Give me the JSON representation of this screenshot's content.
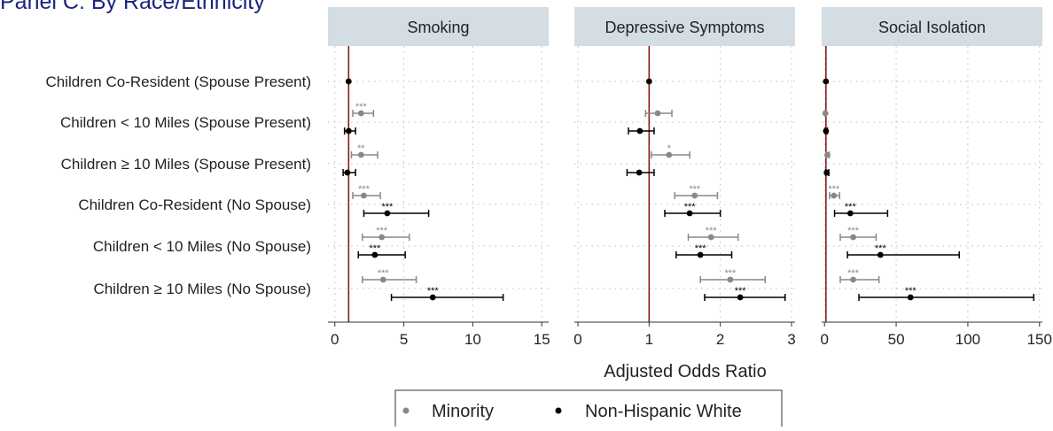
{
  "chart_data": {
    "title": "Panel C: By Race/Ethnicity",
    "type": "scatter",
    "subtype": "forest-plot (odds ratios with 95% CI)",
    "xlabel": "Adjusted Odds Ratio",
    "reference_line_x": 1,
    "reference_line_color": "#8b1a1a",
    "grid": "dotted, both axes",
    "legend_position": "bottom-center",
    "row_labels": [
      "Children Co-Resident (Spouse Present)",
      "Children < 10 Miles (Spouse Present)",
      "Children ≥ 10 Miles (Spouse Present)",
      "Children Co-Resident (No Spouse)",
      "Children < 10 Miles (No Spouse)",
      "Children ≥ 10 Miles (No Spouse)"
    ],
    "legend": [
      {
        "name": "Minority",
        "color": "#888888"
      },
      {
        "name": "Non-Hispanic White",
        "color": "#000000"
      }
    ],
    "panels": [
      {
        "title": "Smoking",
        "xlim": [
          -0.5,
          15.5
        ],
        "xticks": [
          0,
          5,
          10,
          15
        ],
        "series": [
          {
            "name": "Minority",
            "points": [
              null,
              {
                "est": 1.9,
                "lo": 1.3,
                "hi": 2.8,
                "sig": "***"
              },
              {
                "est": 1.9,
                "lo": 1.2,
                "hi": 3.1,
                "sig": "**"
              },
              {
                "est": 2.1,
                "lo": 1.3,
                "hi": 3.3,
                "sig": "***"
              },
              {
                "est": 3.4,
                "lo": 2.0,
                "hi": 5.4,
                "sig": "***"
              },
              {
                "est": 3.5,
                "lo": 2.0,
                "hi": 5.9,
                "sig": "***"
              }
            ]
          },
          {
            "name": "Non-Hispanic White",
            "points": [
              {
                "est": 1.0,
                "lo": 1.0,
                "hi": 1.0,
                "sig": ""
              },
              {
                "est": 1.0,
                "lo": 0.7,
                "hi": 1.5,
                "sig": ""
              },
              {
                "est": 0.9,
                "lo": 0.6,
                "hi": 1.5,
                "sig": ""
              },
              {
                "est": 3.8,
                "lo": 2.1,
                "hi": 6.8,
                "sig": "***"
              },
              {
                "est": 2.9,
                "lo": 1.7,
                "hi": 5.1,
                "sig": "***"
              },
              {
                "est": 7.1,
                "lo": 4.1,
                "hi": 12.2,
                "sig": "***"
              }
            ]
          }
        ]
      },
      {
        "title": "Depressive Symptoms",
        "xlim": [
          -0.05,
          3.05
        ],
        "xticks": [
          0,
          1,
          2,
          3
        ],
        "series": [
          {
            "name": "Minority",
            "points": [
              null,
              {
                "est": 1.12,
                "lo": 0.95,
                "hi": 1.32,
                "sig": ""
              },
              {
                "est": 1.28,
                "lo": 1.03,
                "hi": 1.57,
                "sig": "*"
              },
              {
                "est": 1.64,
                "lo": 1.36,
                "hi": 1.96,
                "sig": "***"
              },
              {
                "est": 1.87,
                "lo": 1.55,
                "hi": 2.25,
                "sig": "***"
              },
              {
                "est": 2.14,
                "lo": 1.72,
                "hi": 2.63,
                "sig": "***"
              }
            ]
          },
          {
            "name": "Non-Hispanic White",
            "points": [
              {
                "est": 1.0,
                "lo": 1.0,
                "hi": 1.0,
                "sig": ""
              },
              {
                "est": 0.87,
                "lo": 0.71,
                "hi": 1.07,
                "sig": ""
              },
              {
                "est": 0.86,
                "lo": 0.69,
                "hi": 1.07,
                "sig": ""
              },
              {
                "est": 1.57,
                "lo": 1.22,
                "hi": 2.0,
                "sig": "***"
              },
              {
                "est": 1.72,
                "lo": 1.38,
                "hi": 2.16,
                "sig": "***"
              },
              {
                "est": 2.28,
                "lo": 1.78,
                "hi": 2.91,
                "sig": "***"
              }
            ]
          }
        ]
      },
      {
        "title": "Social Isolation",
        "xlim": [
          -2,
          152
        ],
        "xticks": [
          0,
          50,
          100,
          150
        ],
        "series": [
          {
            "name": "Minority",
            "points": [
              null,
              {
                "est": 0.6,
                "lo": 0.3,
                "hi": 1.0,
                "sig": ""
              },
              {
                "est": 2.0,
                "lo": 1.2,
                "hi": 3.2,
                "sig": ""
              },
              {
                "est": 6.5,
                "lo": 3.5,
                "hi": 10.5,
                "sig": "***"
              },
              {
                "est": 20.0,
                "lo": 11.0,
                "hi": 36.0,
                "sig": "***"
              },
              {
                "est": 20.0,
                "lo": 11.0,
                "hi": 38.0,
                "sig": "***"
              }
            ]
          },
          {
            "name": "Non-Hispanic White",
            "points": [
              {
                "est": 1.0,
                "lo": 1.0,
                "hi": 1.0,
                "sig": ""
              },
              {
                "est": 1.0,
                "lo": 0.5,
                "hi": 2.0,
                "sig": ""
              },
              {
                "est": 1.5,
                "lo": 0.8,
                "hi": 3.0,
                "sig": ""
              },
              {
                "est": 18.0,
                "lo": 7.0,
                "hi": 44.0,
                "sig": "***"
              },
              {
                "est": 39.0,
                "lo": 16.0,
                "hi": 94.0,
                "sig": "***"
              },
              {
                "est": 60.0,
                "lo": 24.0,
                "hi": 146.0,
                "sig": "***"
              }
            ]
          }
        ]
      }
    ]
  }
}
